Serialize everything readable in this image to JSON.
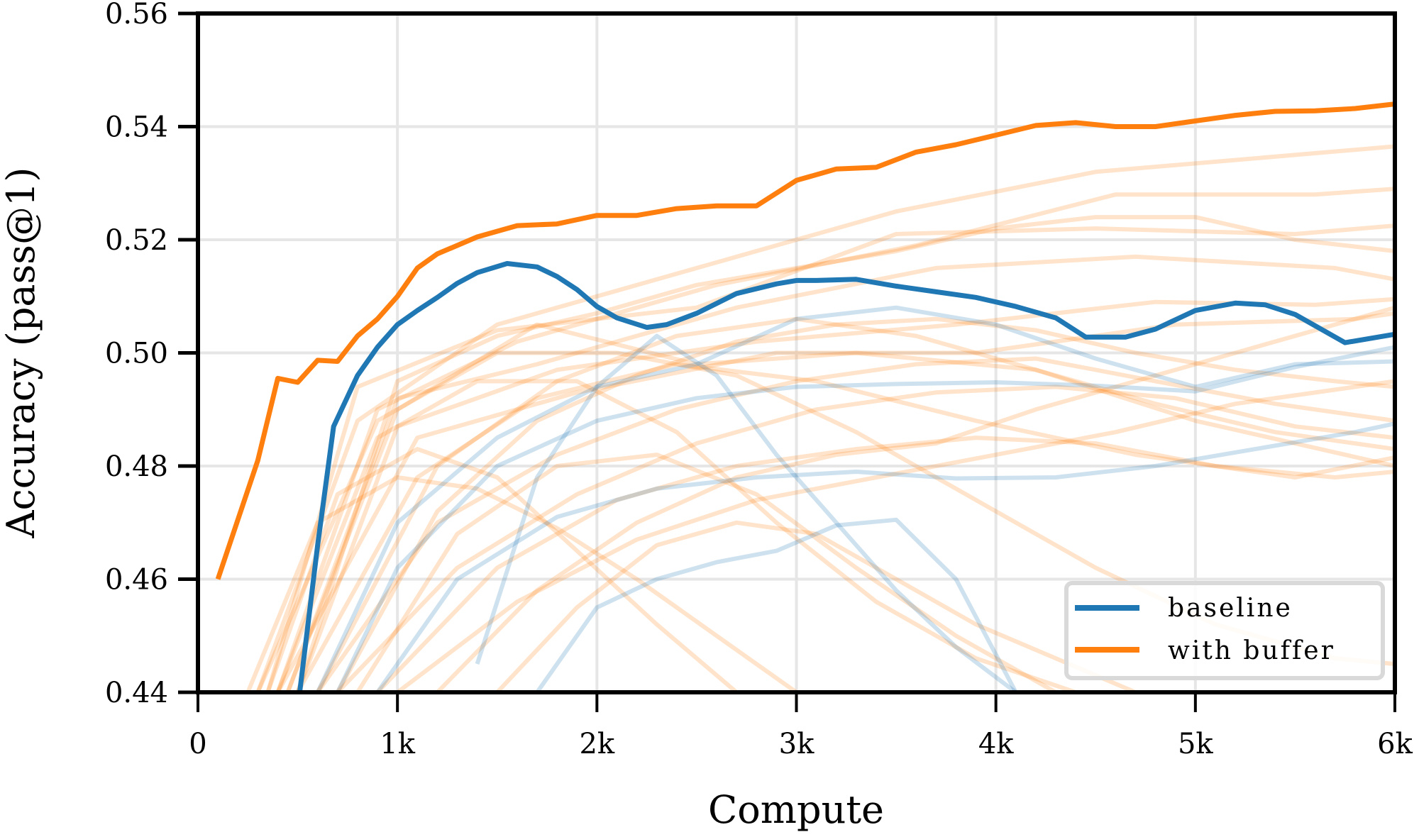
{
  "chart_data": {
    "type": "line",
    "title": "",
    "xlabel": "Compute",
    "ylabel": "Accuracy (pass@1)",
    "xlim": [
      0,
      6000
    ],
    "ylim": [
      0.44,
      0.56
    ],
    "xticks": [
      0,
      1000,
      2000,
      3000,
      4000,
      5000,
      6000
    ],
    "xtick_labels": [
      "0",
      "1k",
      "2k",
      "3k",
      "4k",
      "5k",
      "6k"
    ],
    "yticks": [
      0.44,
      0.46,
      0.48,
      0.5,
      0.52,
      0.54,
      0.56
    ],
    "ytick_labels": [
      "0.44",
      "0.46",
      "0.48",
      "0.50",
      "0.52",
      "0.54",
      "0.56"
    ],
    "grid": true,
    "legend_position": "lower right",
    "colors": {
      "baseline": "#1f77b4",
      "with_buffer": "#ff7f0e",
      "grid": "#e6e6e6",
      "axis": "#000000"
    },
    "series": [
      {
        "name": "baseline",
        "role": "best-so-far envelope",
        "color": "#1f77b4",
        "x": [
          510,
          600,
          680,
          800,
          900,
          1000,
          1100,
          1200,
          1300,
          1400,
          1550,
          1700,
          1800,
          1900,
          2000,
          2100,
          2250,
          2350,
          2500,
          2700,
          2900,
          3000,
          3100,
          3300,
          3500,
          3700,
          3900,
          4100,
          4300,
          4450,
          4650,
          4800,
          5000,
          5200,
          5350,
          5500,
          5750,
          6000
        ],
        "y": [
          0.44,
          0.466,
          0.487,
          0.496,
          0.501,
          0.505,
          0.5075,
          0.5098,
          0.5123,
          0.5142,
          0.5158,
          0.5152,
          0.5135,
          0.5112,
          0.5082,
          0.5062,
          0.5045,
          0.505,
          0.507,
          0.5105,
          0.5122,
          0.5128,
          0.5128,
          0.513,
          0.5118,
          0.5108,
          0.5098,
          0.5082,
          0.5062,
          0.5028,
          0.5028,
          0.5042,
          0.5075,
          0.5088,
          0.5085,
          0.5068,
          0.5018,
          0.5033
        ]
      },
      {
        "name": "with buffer",
        "role": "best-so-far envelope",
        "color": "#ff7f0e",
        "x": [
          100,
          300,
          400,
          500,
          600,
          700,
          800,
          900,
          1000,
          1100,
          1200,
          1300,
          1400,
          1600,
          1800,
          2000,
          2200,
          2400,
          2600,
          2800,
          3000,
          3200,
          3400,
          3600,
          3800,
          4000,
          4200,
          4400,
          4600,
          4800,
          5000,
          5200,
          5400,
          5600,
          5800,
          6000
        ],
        "y": [
          0.46,
          0.481,
          0.4955,
          0.4948,
          0.4987,
          0.4985,
          0.503,
          0.506,
          0.51,
          0.515,
          0.5175,
          0.519,
          0.5205,
          0.5225,
          0.5228,
          0.5243,
          0.5243,
          0.5255,
          0.526,
          0.526,
          0.5305,
          0.5325,
          0.5328,
          0.5355,
          0.5368,
          0.5385,
          0.5402,
          0.5407,
          0.54,
          0.54,
          0.541,
          0.542,
          0.5427,
          0.5428,
          0.5432,
          0.544
        ]
      }
    ],
    "background_runs": {
      "note": "Many faint translucent individual-run curves behind the envelopes (approx. 5 light-blue baseline runs and ~60 light-orange with-buffer runs), spanning roughly 0.44–0.537.",
      "baseline_runs": [
        {
          "x": [
            600,
            1000,
            1500,
            2000,
            2500,
            3000,
            3500,
            4000,
            4500,
            5000,
            5500,
            6000
          ],
          "y": [
            0.44,
            0.47,
            0.485,
            0.494,
            0.498,
            0.506,
            0.508,
            0.505,
            0.499,
            0.494,
            0.498,
            0.4985
          ]
        },
        {
          "x": [
            700,
            1000,
            1500,
            2000,
            2500,
            3000,
            3500,
            4000,
            4500,
            5000,
            5500,
            6000
          ],
          "y": [
            0.44,
            0.462,
            0.48,
            0.488,
            0.492,
            0.494,
            0.4945,
            0.4948,
            0.4942,
            0.4932,
            0.4975,
            0.501
          ]
        },
        {
          "x": [
            900,
            1300,
            1800,
            2300,
            2800,
            3300,
            3800,
            4300,
            4800,
            5300,
            5800,
            6000
          ],
          "y": [
            0.44,
            0.46,
            0.471,
            0.476,
            0.478,
            0.479,
            0.4778,
            0.478,
            0.48,
            0.483,
            0.486,
            0.4875
          ]
        },
        {
          "x": [
            1700,
            2000,
            2300,
            2600,
            2900,
            3200,
            3500,
            3800,
            4100
          ],
          "y": [
            0.44,
            0.455,
            0.46,
            0.463,
            0.465,
            0.4695,
            0.4705,
            0.46,
            0.44
          ]
        },
        {
          "x": [
            1400,
            1700,
            2000,
            2300,
            2600,
            2900,
            3200,
            3500,
            3800,
            4100,
            4400
          ],
          "y": [
            0.445,
            0.478,
            0.494,
            0.503,
            0.496,
            0.482,
            0.47,
            0.458,
            0.448,
            0.44,
            0.432
          ]
        }
      ],
      "buffer_runs": [
        {
          "x": [
            300,
            800,
            1500,
            2500,
            3500,
            4500,
            5500,
            6000
          ],
          "y": [
            0.44,
            0.488,
            0.505,
            0.515,
            0.525,
            0.532,
            0.535,
            0.5365
          ]
        },
        {
          "x": [
            400,
            900,
            1600,
            2600,
            3600,
            4600,
            5600,
            6000
          ],
          "y": [
            0.44,
            0.49,
            0.502,
            0.512,
            0.519,
            0.528,
            0.528,
            0.529
          ]
        },
        {
          "x": [
            350,
            800,
            1500,
            2500,
            3500,
            4500,
            5500,
            6000
          ],
          "y": [
            0.44,
            0.494,
            0.504,
            0.508,
            0.521,
            0.522,
            0.521,
            0.5225
          ]
        },
        {
          "x": [
            450,
            1000,
            1700,
            2700,
            3700,
            4700,
            5700,
            6000
          ],
          "y": [
            0.44,
            0.492,
            0.498,
            0.508,
            0.515,
            0.517,
            0.515,
            0.513
          ]
        },
        {
          "x": [
            500,
            1000,
            1800,
            2800,
            3800,
            4800,
            5600,
            6000
          ],
          "y": [
            0.44,
            0.487,
            0.497,
            0.502,
            0.505,
            0.509,
            0.5085,
            0.5095
          ]
        },
        {
          "x": [
            400,
            1100,
            1900,
            2900,
            3900,
            4900,
            5800,
            6000
          ],
          "y": [
            0.44,
            0.485,
            0.493,
            0.5,
            0.5,
            0.505,
            0.506,
            0.507
          ]
        },
        {
          "x": [
            450,
            1000,
            1700,
            2500,
            3300,
            4200,
            5000,
            6000
          ],
          "y": [
            0.44,
            0.49,
            0.505,
            0.498,
            0.5,
            0.497,
            0.488,
            0.48
          ]
        },
        {
          "x": [
            500,
            1100,
            1700,
            2400,
            3100,
            3900,
            4700,
            5500,
            6000
          ],
          "y": [
            0.44,
            0.478,
            0.492,
            0.498,
            0.495,
            0.488,
            0.482,
            0.478,
            0.4815
          ]
        },
        {
          "x": [
            300,
            900,
            1500,
            2100,
            2700,
            3300,
            3900,
            4500,
            5100,
            5700,
            6000
          ],
          "y": [
            0.44,
            0.488,
            0.5,
            0.5,
            0.496,
            0.486,
            0.474,
            0.462,
            0.452,
            0.446,
            0.445
          ]
        },
        {
          "x": [
            400,
            900,
            1400,
            1900,
            2400,
            2900,
            3400,
            3900,
            4400
          ],
          "y": [
            0.44,
            0.485,
            0.495,
            0.495,
            0.486,
            0.47,
            0.456,
            0.446,
            0.44
          ]
        },
        {
          "x": [
            600,
            1200,
            1800,
            2400,
            3000,
            3600,
            4200,
            4800,
            5400,
            6000
          ],
          "y": [
            0.44,
            0.47,
            0.482,
            0.49,
            0.495,
            0.498,
            0.499,
            0.495,
            0.491,
            0.488
          ]
        },
        {
          "x": [
            700,
            1300,
            1900,
            2500,
            3100,
            3700,
            4300,
            4900,
            5500,
            6000
          ],
          "y": [
            0.44,
            0.462,
            0.475,
            0.484,
            0.49,
            0.493,
            0.494,
            0.492,
            0.487,
            0.485
          ]
        },
        {
          "x": [
            800,
            1300,
            1800,
            2300,
            2800,
            3300,
            3800,
            4300
          ],
          "y": [
            0.44,
            0.468,
            0.48,
            0.482,
            0.475,
            0.462,
            0.45,
            0.44
          ]
        },
        {
          "x": [
            350,
            700,
            1100,
            1500,
            1900,
            2300,
            2700
          ],
          "y": [
            0.44,
            0.475,
            0.483,
            0.478,
            0.465,
            0.452,
            0.44
          ]
        },
        {
          "x": [
            900,
            1500,
            2100,
            2700,
            3300,
            3900,
            4500,
            5100,
            5700,
            6000
          ],
          "y": [
            0.44,
            0.462,
            0.474,
            0.48,
            0.483,
            0.485,
            0.484,
            0.48,
            0.478,
            0.479
          ]
        },
        {
          "x": [
            1000,
            1600,
            2200,
            2800,
            3400,
            4000,
            4600,
            5200,
            5800,
            6000
          ],
          "y": [
            0.44,
            0.456,
            0.467,
            0.474,
            0.478,
            0.482,
            0.486,
            0.491,
            0.494,
            0.495
          ]
        },
        {
          "x": [
            600,
            1200,
            1800,
            2400,
            3000,
            3600,
            4200,
            4800,
            5400,
            6000
          ],
          "y": [
            0.44,
            0.48,
            0.495,
            0.503,
            0.506,
            0.503,
            0.497,
            0.491,
            0.486,
            0.483
          ]
        },
        {
          "x": [
            500,
            1000,
            1500,
            2000,
            2500,
            3000,
            3500,
            4000,
            4500,
            5000,
            5500,
            6000
          ],
          "y": [
            0.44,
            0.495,
            0.503,
            0.507,
            0.512,
            0.515,
            0.518,
            0.522,
            0.524,
            0.524,
            0.52,
            0.518
          ]
        },
        {
          "x": [
            1200,
            1700,
            2200,
            2700,
            3200,
            3700,
            4200,
            4700,
            5200,
            5700,
            6000
          ],
          "y": [
            0.44,
            0.458,
            0.47,
            0.478,
            0.482,
            0.484,
            0.49,
            0.495,
            0.5,
            0.505,
            0.508
          ]
        },
        {
          "x": [
            1500,
            1900,
            2300,
            2700,
            3100,
            3500,
            3900,
            4300,
            4700
          ],
          "y": [
            0.44,
            0.455,
            0.466,
            0.47,
            0.468,
            0.46,
            0.452,
            0.446,
            0.44
          ]
        },
        {
          "x": [
            250,
            600,
            1000,
            1400,
            1800,
            2200,
            2600,
            3000
          ],
          "y": [
            0.44,
            0.47,
            0.478,
            0.476,
            0.469,
            0.46,
            0.45,
            0.44
          ]
        },
        {
          "x": [
            700,
            1200,
            1700,
            2200,
            2700,
            3200,
            3700,
            4200,
            4700,
            5200,
            5700,
            6000
          ],
          "y": [
            0.44,
            0.472,
            0.488,
            0.496,
            0.502,
            0.505,
            0.506,
            0.504,
            0.5,
            0.497,
            0.495,
            0.494
          ]
        }
      ]
    }
  },
  "legend": {
    "items": [
      {
        "label": "baseline",
        "color": "#1f77b4"
      },
      {
        "label": "with buffer",
        "color": "#ff7f0e"
      }
    ]
  },
  "axes": {
    "xlabel": "Compute",
    "ylabel": "Accuracy (pass@1)"
  }
}
